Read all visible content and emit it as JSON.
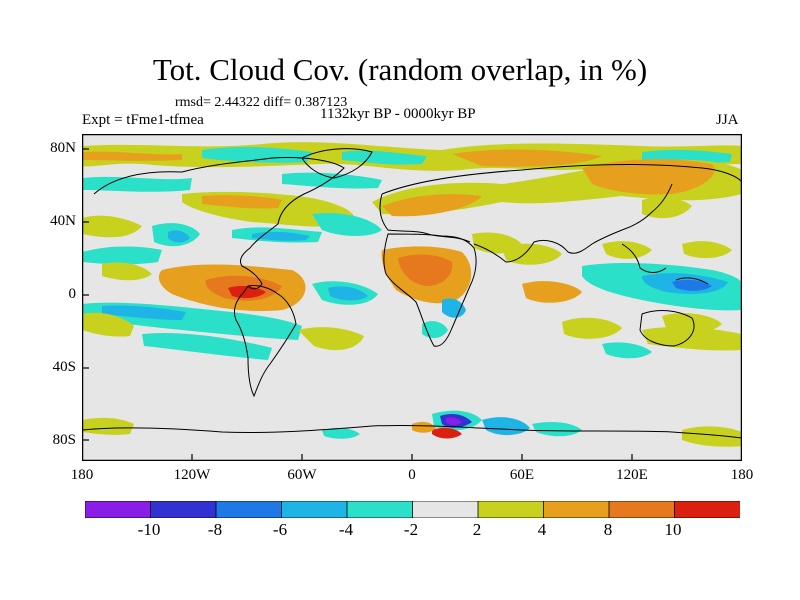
{
  "title": "Tot. Cloud Cov. (random overlap, in %)",
  "stats": "rmsd= 2.44322 diff= 0.387123",
  "expt": "Expt = tFme1-tfmea",
  "period": "1132kyr BP - 0000kyr BP",
  "season": "JJA",
  "lat_ticks": [
    "80N",
    "40N",
    "0",
    "40S",
    "80S"
  ],
  "lon_ticks": [
    "180",
    "120W",
    "60W",
    "0",
    "60E",
    "120E",
    "180"
  ],
  "colorbar": {
    "labels": [
      "-10",
      "-8",
      "-6",
      "-4",
      "-2",
      "2",
      "4",
      "8",
      "10"
    ],
    "colors": [
      "#8a1ee6",
      "#3232d2",
      "#1e78e6",
      "#1eb4e6",
      "#2ae0c8",
      "#e6e6e6",
      "#c8d21e",
      "#e6a01e",
      "#e6781e",
      "#dc2010"
    ]
  }
}
